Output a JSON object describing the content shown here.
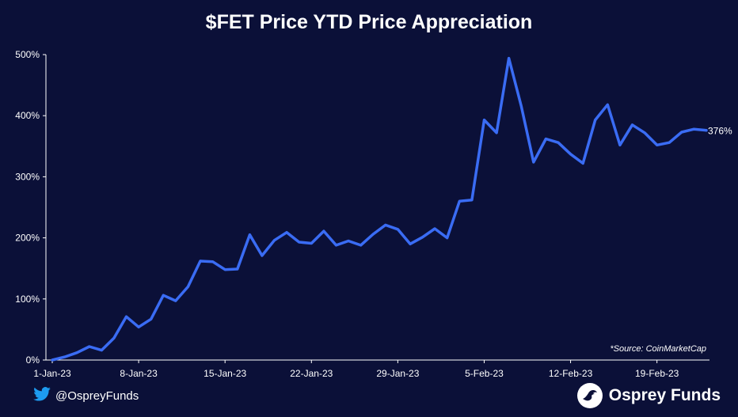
{
  "title": "$FET Price YTD Price Appreciation",
  "source_note": "*Source: CoinMarketCap",
  "footer": {
    "handle": "@OspreyFunds",
    "brand": "Osprey Funds"
  },
  "colors": {
    "background": "#0b1038",
    "line": "#3a6cf4",
    "text": "#ffffff"
  },
  "icons": {
    "social": "twitter-bird-icon",
    "brand": "osprey-logo-icon"
  },
  "chart_data": {
    "type": "line",
    "title": "$FET Price YTD Price Appreciation",
    "xlabel": "",
    "ylabel": "",
    "ylim": [
      0,
      500
    ],
    "y_ticks": [
      0,
      100,
      200,
      300,
      400,
      500
    ],
    "y_tick_labels": [
      "0%",
      "100%",
      "200%",
      "300%",
      "400%",
      "500%"
    ],
    "x_tick_labels": [
      "1-Jan-23",
      "8-Jan-23",
      "15-Jan-23",
      "22-Jan-23",
      "29-Jan-23",
      "5-Feb-23",
      "12-Feb-23",
      "19-Feb-23"
    ],
    "x_tick_days": [
      0,
      7,
      14,
      21,
      28,
      35,
      42,
      49
    ],
    "end_label": "376%",
    "grid": false,
    "series": [
      {
        "name": "",
        "x": [
          "1-Jan-23",
          "2-Jan-23",
          "3-Jan-23",
          "4-Jan-23",
          "5-Jan-23",
          "6-Jan-23",
          "7-Jan-23",
          "8-Jan-23",
          "9-Jan-23",
          "10-Jan-23",
          "11-Jan-23",
          "12-Jan-23",
          "13-Jan-23",
          "14-Jan-23",
          "15-Jan-23",
          "16-Jan-23",
          "17-Jan-23",
          "18-Jan-23",
          "19-Jan-23",
          "20-Jan-23",
          "21-Jan-23",
          "22-Jan-23",
          "23-Jan-23",
          "24-Jan-23",
          "25-Jan-23",
          "26-Jan-23",
          "27-Jan-23",
          "28-Jan-23",
          "29-Jan-23",
          "30-Jan-23",
          "31-Jan-23",
          "1-Feb-23",
          "2-Feb-23",
          "3-Feb-23",
          "4-Feb-23",
          "5-Feb-23",
          "6-Feb-23",
          "7-Feb-23",
          "8-Feb-23",
          "9-Feb-23",
          "10-Feb-23",
          "11-Feb-23",
          "12-Feb-23",
          "13-Feb-23",
          "14-Feb-23",
          "15-Feb-23",
          "16-Feb-23",
          "17-Feb-23",
          "18-Feb-23",
          "19-Feb-23",
          "20-Feb-23",
          "21-Feb-23",
          "22-Feb-23",
          "23-Feb-23"
        ],
        "values": [
          0,
          5,
          12,
          22,
          16,
          36,
          71,
          54,
          67,
          106,
          97,
          120,
          162,
          161,
          148,
          149,
          205,
          171,
          196,
          209,
          193,
          191,
          211,
          188,
          195,
          188,
          206,
          221,
          214,
          190,
          201,
          215,
          200,
          260,
          262,
          393,
          372,
          494,
          416,
          324,
          362,
          356,
          337,
          322,
          393,
          418,
          352,
          385,
          372,
          352,
          356,
          373,
          378,
          376
        ]
      }
    ]
  }
}
